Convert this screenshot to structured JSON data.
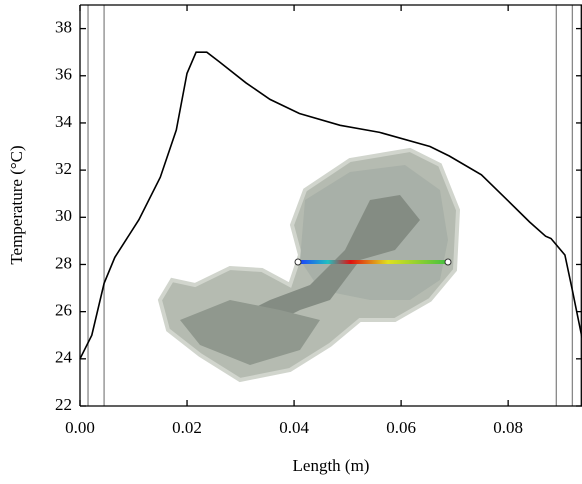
{
  "chart_data": {
    "type": "line",
    "x_label": "Length (m)",
    "y_label": "Temperature (°C)",
    "x": [
      0,
      0.0022,
      0.0045,
      0.0065,
      0.011,
      0.015,
      0.018,
      0.02,
      0.0217,
      0.0237,
      0.026,
      0.031,
      0.0355,
      0.041,
      0.0486,
      0.056,
      0.0654,
      0.069,
      0.075,
      0.08,
      0.084,
      0.087,
      0.088,
      0.0906,
      0.092,
      0.0938
    ],
    "series": [
      {
        "color": "#000000",
        "values": [
          24.0,
          25.0,
          27.2,
          28.3,
          29.9,
          31.7,
          33.7,
          36.1,
          37.0,
          37.0,
          36.6,
          35.7,
          35.0,
          34.4,
          33.9,
          33.6,
          33.0,
          32.6,
          31.8,
          30.7,
          29.8,
          29.2,
          29.1,
          28.4,
          26.9,
          24.9
        ]
      }
    ],
    "xlim": [
      0,
      0.0938
    ],
    "ylim": [
      22,
      39
    ],
    "xticks": [
      {
        "value": 0,
        "label": "0.00"
      },
      0.02,
      0.04,
      0.06,
      0.08
    ],
    "yticks": [
      22,
      24,
      26,
      28,
      30,
      32,
      34,
      36,
      38
    ],
    "vlines": [
      0.0015,
      0.0045,
      0.089,
      0.092
    ],
    "vline_color": "#888888"
  }
}
